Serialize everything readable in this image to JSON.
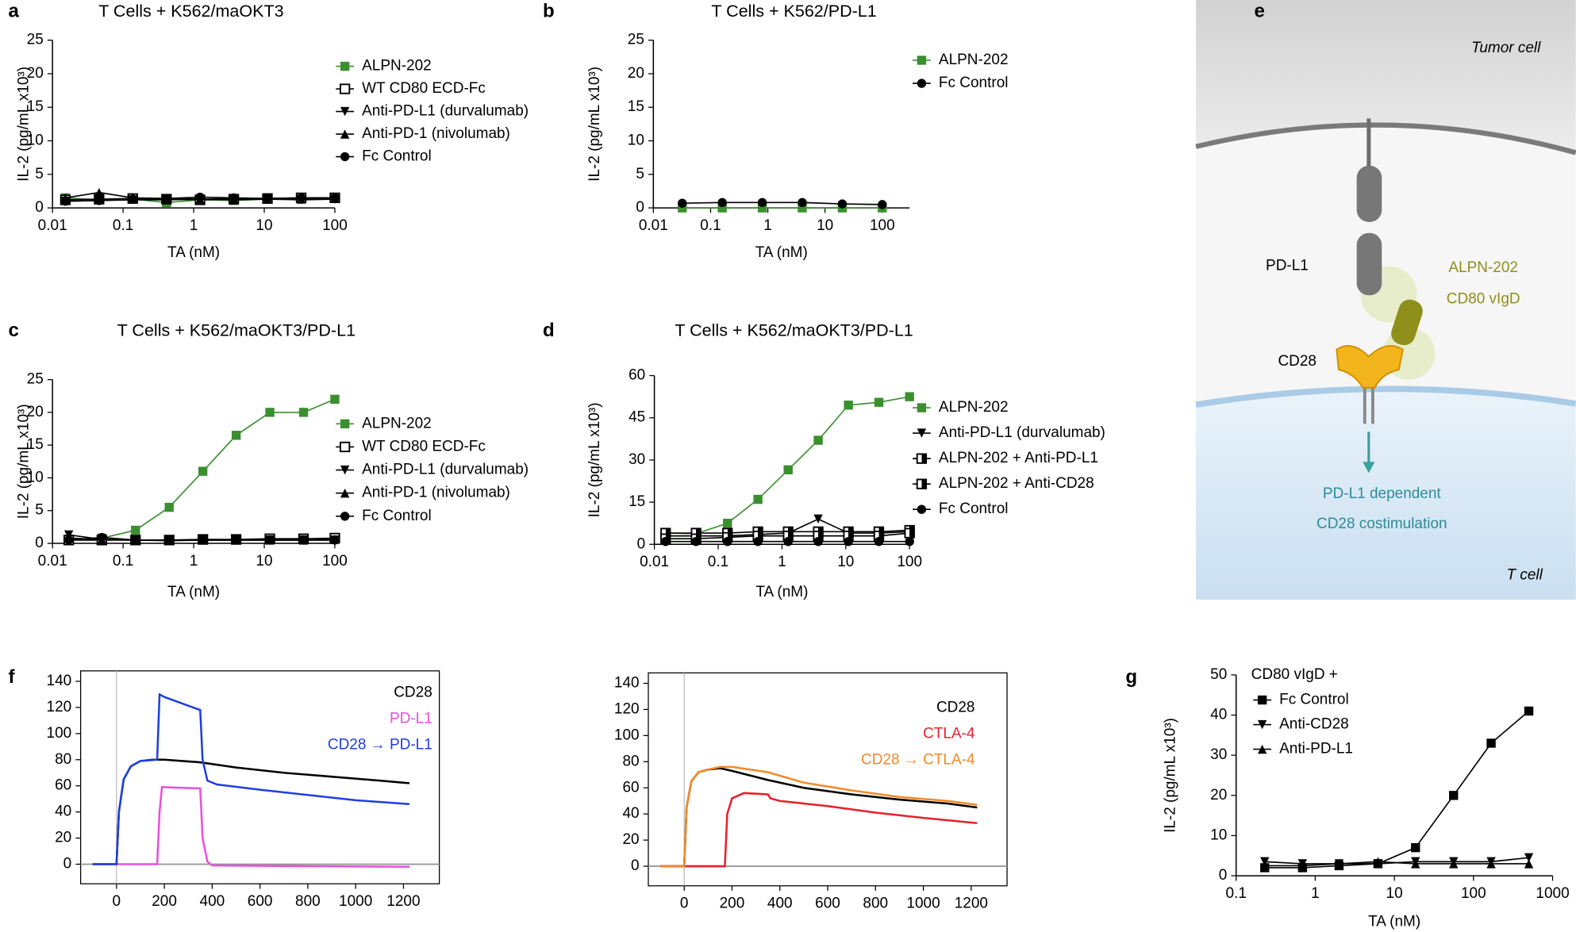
{
  "chart_data": [
    {
      "type": "line",
      "panel_label": "a",
      "title": "T Cells + K562/maOKT3",
      "x_label": "TA (nM)",
      "y_label": "IL-2 (pg/mL x10³)",
      "xscale": "log",
      "xlim": [
        0.01,
        100
      ],
      "xticks": [
        0.01,
        0.1,
        1,
        10,
        100
      ],
      "ylim": [
        0,
        25
      ],
      "yticks": [
        0,
        5,
        10,
        15,
        20,
        25
      ],
      "legend": "upper right",
      "x": [
        0.0152,
        0.0457,
        0.137,
        0.412,
        1.23,
        3.7,
        11.1,
        33.3,
        100
      ],
      "series": [
        {
          "name": "ALPN-202",
          "color": "#3a8f2f",
          "marker": "square",
          "values": [
            1.5,
            1.2,
            1.3,
            0.8,
            1.2,
            1.1,
            1.3,
            1.4,
            1.5
          ]
        },
        {
          "name": "WT CD80 ECD-Fc",
          "color": "#000000",
          "marker": "square-open",
          "values": [
            1.2,
            1.3,
            1.4,
            1.3,
            1.2,
            1.3,
            1.4,
            1.5,
            1.5
          ]
        },
        {
          "name": "Anti-PD-L1 (durvalumab)",
          "color": "#000000",
          "marker": "triangle-down",
          "values": [
            1.0,
            1.1,
            1.2,
            1.2,
            1.3,
            1.2,
            1.3,
            1.2,
            1.3
          ]
        },
        {
          "name": "Anti-PD-1 (nivolumab)",
          "color": "#000000",
          "marker": "triangle-up",
          "values": [
            1.5,
            2.3,
            1.5,
            1.4,
            1.3,
            1.4,
            1.3,
            1.3,
            1.4
          ]
        },
        {
          "name": "Fc Control",
          "color": "#000000",
          "marker": "circle",
          "values": [
            1.0,
            1.1,
            1.3,
            1.4,
            1.6,
            1.5,
            1.4,
            1.5,
            1.5
          ]
        }
      ]
    },
    {
      "type": "line",
      "panel_label": "b",
      "title": "T Cells + K562/PD-L1",
      "x_label": "TA (nM)",
      "y_label": "IL-2 (pg/mL x10³)",
      "xscale": "log",
      "xlim": [
        0.01,
        300
      ],
      "xticks": [
        0.01,
        0.1,
        1,
        10,
        100
      ],
      "ylim": [
        0,
        25
      ],
      "yticks": [
        0,
        5,
        10,
        15,
        20,
        25
      ],
      "legend": "upper right",
      "x": [
        0.032,
        0.16,
        0.8,
        4,
        20,
        100
      ],
      "series": [
        {
          "name": "ALPN-202",
          "color": "#3a8f2f",
          "marker": "square",
          "values": [
            0,
            0,
            0,
            0,
            0,
            0
          ]
        },
        {
          "name": "Fc Control",
          "color": "#000000",
          "marker": "circle",
          "values": [
            0.7,
            0.8,
            0.8,
            0.8,
            0.6,
            0.5
          ]
        }
      ]
    },
    {
      "type": "line",
      "panel_label": "c",
      "title": "T Cells + K562/maOKT3/PD-L1",
      "x_label": "TA (nM)",
      "y_label": "IL-2 (pg/mL x10³)",
      "xscale": "log",
      "xlim": [
        0.01,
        100
      ],
      "xticks": [
        0.01,
        0.1,
        1,
        10,
        100
      ],
      "ylim": [
        0,
        25
      ],
      "yticks": [
        0,
        5,
        10,
        15,
        20,
        25
      ],
      "legend": "upper right",
      "x": [
        0.017,
        0.05,
        0.15,
        0.45,
        1.35,
        4,
        12,
        36,
        100
      ],
      "series": [
        {
          "name": "ALPN-202",
          "color": "#3a8f2f",
          "marker": "square",
          "values": [
            0.5,
            0.8,
            2,
            5.5,
            11,
            16.5,
            20,
            20,
            22
          ]
        },
        {
          "name": "WT CD80 ECD-Fc",
          "color": "#000000",
          "marker": "square-open",
          "values": [
            0.5,
            0.5,
            0.5,
            0.5,
            0.6,
            0.6,
            0.7,
            0.7,
            0.8
          ]
        },
        {
          "name": "Anti-PD-L1 (durvalumab)",
          "color": "#000000",
          "marker": "triangle-down",
          "values": [
            1.3,
            0.6,
            0.5,
            0.4,
            0.5,
            0.5,
            0.5,
            0.5,
            0.5
          ]
        },
        {
          "name": "Anti-PD-1 (nivolumab)",
          "color": "#000000",
          "marker": "triangle-up",
          "values": [
            0.8,
            0.6,
            0.5,
            0.5,
            0.5,
            0.5,
            0.5,
            0.5,
            0.6
          ]
        },
        {
          "name": "Fc Control",
          "color": "#000000",
          "marker": "circle",
          "values": [
            0.5,
            0.9,
            0.5,
            0.5,
            0.5,
            0.5,
            0.5,
            0.5,
            0.5
          ]
        }
      ]
    },
    {
      "type": "line",
      "panel_label": "d",
      "title": "T Cells + K562/maOKT3/PD-L1",
      "x_label": "TA (nM)",
      "y_label": "IL-2 (pg/mL x10³)",
      "xscale": "log",
      "xlim": [
        0.01,
        100
      ],
      "xticks": [
        0.01,
        0.1,
        1,
        10,
        100
      ],
      "ylim": [
        0,
        60
      ],
      "yticks": [
        0,
        15,
        30,
        45,
        60
      ],
      "legend": "upper right",
      "x": [
        0.015,
        0.045,
        0.14,
        0.42,
        1.25,
        3.7,
        11,
        33,
        100
      ],
      "series": [
        {
          "name": "ALPN-202",
          "color": "#3a8f2f",
          "marker": "square",
          "values": [
            4,
            3.8,
            7.5,
            16,
            26.5,
            37,
            49.5,
            50.5,
            52.5
          ]
        },
        {
          "name": "Anti-PD-L1 (durvalumab)",
          "color": "#000000",
          "marker": "triangle-down",
          "values": [
            3,
            3,
            3,
            3.5,
            4,
            9,
            4,
            4,
            4.5
          ]
        },
        {
          "name": "ALPN-202 + Anti-PD-L1",
          "color": "#000000",
          "marker": "square-half",
          "values": [
            4,
            4,
            4,
            4.5,
            4.5,
            4.5,
            4.5,
            4.5,
            5
          ]
        },
        {
          "name": "ALPN-202 + Anti-CD28",
          "color": "#000000",
          "marker": "square-half",
          "values": [
            2,
            2,
            2.5,
            3,
            3,
            3,
            3,
            3,
            4
          ]
        },
        {
          "name": "Fc Control",
          "color": "#000000",
          "marker": "circle",
          "values": [
            1,
            1,
            1,
            1,
            1,
            1,
            1,
            1,
            1
          ]
        }
      ]
    },
    {
      "type": "line",
      "panel_label": "f",
      "xlim": [
        -150,
        1350
      ],
      "xticks": [
        0,
        200,
        400,
        600,
        800,
        1000,
        1200
      ],
      "ylim": [
        -15,
        148
      ],
      "yticks": [
        0,
        20,
        40,
        60,
        80,
        100,
        120,
        140
      ],
      "legend": "upper right",
      "series": [
        {
          "name": "CD28",
          "color": "#000000",
          "x": [
            -100,
            0,
            10,
            30,
            60,
            100,
            150,
            200,
            350,
            500,
            700,
            900,
            1100,
            1225
          ],
          "values": [
            0,
            0,
            40,
            65,
            75,
            79,
            80,
            80,
            78,
            74,
            70,
            67,
            64,
            62
          ]
        },
        {
          "name": "PD-L1",
          "color": "#e94fe0",
          "x": [
            -100,
            170,
            180,
            190,
            350,
            360,
            380,
            400,
            1225
          ],
          "values": [
            0,
            0,
            40,
            59,
            58,
            20,
            2,
            -1,
            -2
          ]
        },
        {
          "name": "CD28 → PD-L1",
          "color": "#1f3fe0",
          "x": [
            -100,
            0,
            10,
            30,
            60,
            100,
            170,
            180,
            200,
            350,
            360,
            380,
            420,
            600,
            800,
            1000,
            1225
          ],
          "values": [
            0,
            0,
            40,
            65,
            75,
            79,
            80,
            130,
            128,
            118,
            80,
            64,
            61,
            57,
            53,
            49,
            46
          ]
        }
      ]
    },
    {
      "type": "line",
      "xlim": [
        -150,
        1350
      ],
      "xticks": [
        0,
        200,
        400,
        600,
        800,
        1000,
        1200
      ],
      "ylim": [
        -15,
        148
      ],
      "yticks": [
        0,
        20,
        40,
        60,
        80,
        100,
        120,
        140
      ],
      "legend": "upper right",
      "series": [
        {
          "name": "CD28",
          "color": "#000000",
          "x": [
            -100,
            0,
            10,
            30,
            60,
            100,
            150,
            200,
            350,
            500,
            700,
            900,
            1100,
            1225
          ],
          "values": [
            0,
            0,
            45,
            65,
            72,
            74,
            75,
            73,
            66,
            60,
            55,
            51,
            48,
            45
          ]
        },
        {
          "name": "CTLA-4",
          "color": "#e8202a",
          "x": [
            -100,
            170,
            180,
            200,
            250,
            350,
            360,
            400,
            600,
            800,
            1000,
            1225
          ],
          "values": [
            0,
            0,
            40,
            52,
            56,
            55,
            52,
            50,
            46,
            41,
            37,
            33
          ]
        },
        {
          "name": "CD28 → CTLA-4",
          "color": "#f28a2a",
          "x": [
            -100,
            0,
            10,
            30,
            60,
            100,
            150,
            200,
            350,
            500,
            700,
            900,
            1100,
            1225
          ],
          "values": [
            0,
            0,
            45,
            65,
            72,
            74,
            76,
            76,
            72,
            64,
            58,
            53,
            50,
            47
          ]
        }
      ]
    },
    {
      "type": "line",
      "panel_label": "g",
      "x_label": "TA (nM)",
      "y_label": "IL-2 (pg/mL x10³)",
      "legend_title": "CD80 vIgD +",
      "xscale": "log",
      "xlim": [
        0.1,
        1000
      ],
      "xticks": [
        0.1,
        1,
        10,
        100,
        1000
      ],
      "ylim": [
        0,
        50
      ],
      "yticks": [
        0,
        10,
        20,
        30,
        40,
        50
      ],
      "legend": "upper left",
      "x": [
        0.23,
        0.69,
        2,
        6.2,
        18.5,
        56,
        167,
        500
      ],
      "series": [
        {
          "name": "Fc Control",
          "color": "#000000",
          "marker": "square",
          "values": [
            2,
            2,
            2.5,
            3,
            7,
            20,
            33,
            41
          ]
        },
        {
          "name": "Anti-CD28",
          "color": "#000000",
          "marker": "triangle-down",
          "values": [
            3.5,
            3,
            3,
            3,
            3.5,
            3.5,
            3.5,
            4.5
          ]
        },
        {
          "name": "Anti-PD-L1",
          "color": "#000000",
          "marker": "triangle-up",
          "values": [
            2.5,
            2.5,
            3,
            3.5,
            3,
            3,
            3,
            3
          ]
        }
      ]
    }
  ],
  "diagram": {
    "panel_label": "e",
    "tumor_label": "Tumor cell",
    "pdl1_label": "PD-L1",
    "alpn_label": "ALPN-202",
    "vigd_label": "CD80 vIgD",
    "cd28_label": "CD28",
    "result_line1": "PD-L1 dependent",
    "result_line2": "CD28 costimulation",
    "tcell_label": "T cell"
  }
}
